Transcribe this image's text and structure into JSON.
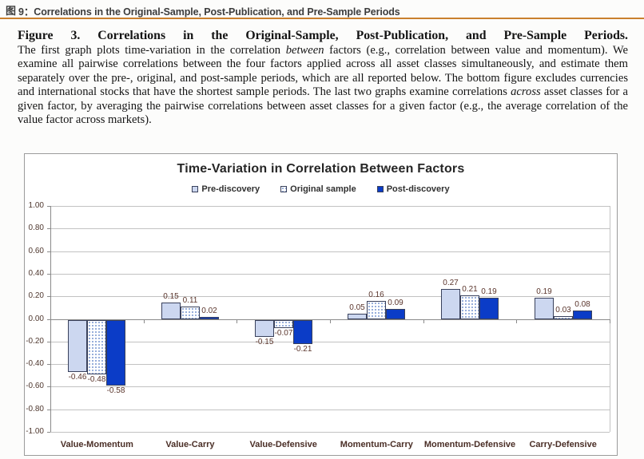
{
  "header": {
    "icon": "图",
    "label": "9：Correlations in the Original-Sample, Post-Publication, and Pre-Sample Periods"
  },
  "caption": {
    "heading": "Figure 3. Correlations in the Original-Sample, Post-Publication, and Pre-Sample Periods.",
    "body_1": "The first graph plots time-variation in the correlation ",
    "italic_1": "between",
    "body_2": " factors (e.g., correlation between value and momentum). We examine all pairwise correlations between the four factors applied across all asset classes simultaneously, and estimate them separately over the pre-, original, and post-sample periods, which are all reported below. The bottom figure excludes currencies and international stocks that have the shortest sample periods. The last two graphs examine correlations ",
    "italic_2": "across",
    "body_3": " asset classes for a given factor, by averaging the pairwise correlations between asset classes for a given factor (e.g., the average correlation of the value factor across markets)."
  },
  "chart_data": {
    "type": "bar",
    "title": "Time-Variation in Correlation Between Factors",
    "categories": [
      "Value-Momentum",
      "Value-Carry",
      "Value-Defensive",
      "Momentum-Carry",
      "Momentum-Defensive",
      "Carry-Defensive"
    ],
    "series": [
      {
        "name": "Pre-discovery",
        "values": [
          -0.46,
          0.15,
          -0.15,
          0.05,
          0.27,
          0.19
        ],
        "fill": "#ccd7f0",
        "pattern": "solid"
      },
      {
        "name": "Original sample",
        "values": [
          -0.48,
          0.11,
          -0.07,
          0.16,
          0.21,
          0.03
        ],
        "fill": "#ffffff",
        "pattern": "dotted"
      },
      {
        "name": "Post-discovery",
        "values": [
          -0.58,
          0.02,
          -0.21,
          0.09,
          0.19,
          0.08
        ],
        "fill": "#0b3cc7",
        "pattern": "solid"
      }
    ],
    "ylim": [
      -1.0,
      1.0
    ],
    "ytick_step": 0.2,
    "grid": true,
    "legend_position": "top",
    "xlabel": "",
    "ylabel": ""
  },
  "colors": {
    "accent_rule": "#c9802e",
    "pre_discovery_fill": "#ccd7f0",
    "original_sample_dot": "#84a0d4",
    "post_discovery_fill": "#0b3cc7",
    "bar_border": "#39415c",
    "value_label": "#5a352c",
    "category_label": "#4a2e26",
    "axis_label": "#4f382f",
    "gridline": "#c2c2c2",
    "axis_line": "#8a8a8a",
    "title_text": "#262626",
    "legend_text": "#303030"
  }
}
